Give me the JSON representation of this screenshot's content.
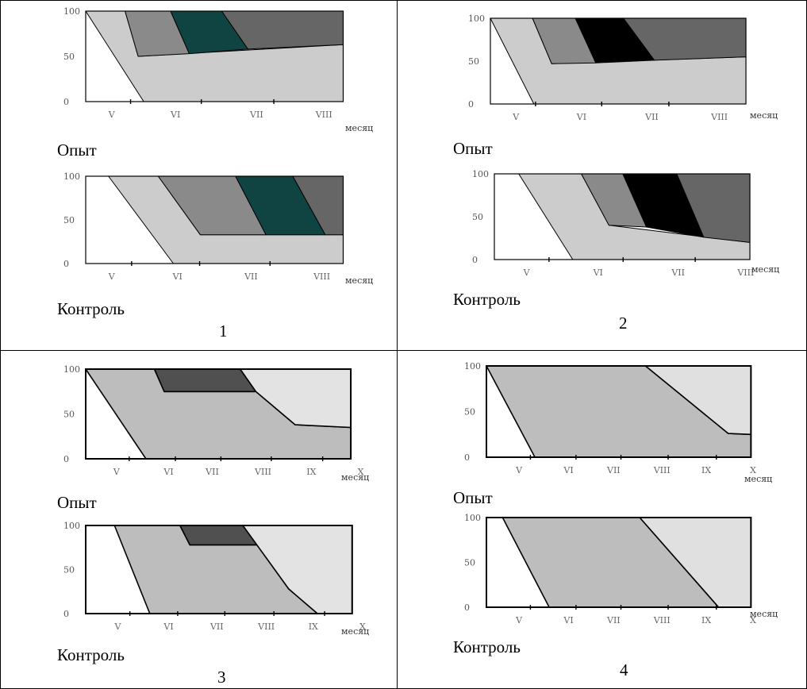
{
  "colors": {
    "background": "#ffffff",
    "grid_border": "#000000",
    "phase_1": "#cccccc",
    "phase_2": "#8a8a8a",
    "phase_3_teal": "#0f4443",
    "phase_3_black": "#000000",
    "phase_3_dark": "#505050",
    "phase_4": "#666666",
    "phase_4_light": "#e0e0e0",
    "phase_plant": "#bdbdbd",
    "phase_late": "#e3e3e3"
  },
  "chart_data": [
    {
      "type": "area",
      "panel": "1",
      "condition": "Опыт",
      "unit_label": "месяц",
      "ylim": [
        0,
        100
      ],
      "y_ticks": [
        "0",
        "50",
        "100"
      ],
      "x_ticks": [
        "V",
        "VI",
        "VII",
        "VIII"
      ],
      "x_domain": [
        0,
        4
      ],
      "month_positions": [
        0.1,
        1.0,
        2.15,
        3.1
      ],
      "series": [
        {
          "fill": "phase_1",
          "polygon": [
            [
              0,
              100
            ],
            [
              0.57,
              100
            ],
            [
              0.76,
              50
            ],
            [
              3.73,
              63
            ],
            [
              3.73,
              0
            ],
            [
              0.84,
              0
            ]
          ]
        },
        {
          "fill": "phase_2",
          "polygon": [
            [
              0.57,
              100
            ],
            [
              1.23,
              100
            ],
            [
              1.5,
              53
            ],
            [
              0.76,
              50
            ]
          ]
        },
        {
          "fill": "phase_3_teal",
          "polygon": [
            [
              1.23,
              100
            ],
            [
              1.97,
              100
            ],
            [
              2.35,
              58
            ],
            [
              1.5,
              53
            ]
          ]
        },
        {
          "fill": "phase_4",
          "polygon": [
            [
              1.97,
              100
            ],
            [
              3.73,
              100
            ],
            [
              3.73,
              63
            ],
            [
              2.35,
              58
            ]
          ]
        }
      ]
    },
    {
      "type": "area",
      "panel": "1",
      "condition": "Контроль",
      "unit_label": "месяц",
      "ylim": [
        0,
        100
      ],
      "y_ticks": [
        "0",
        "50",
        "100"
      ],
      "x_ticks": [
        "V",
        "VI",
        "VII",
        "VIII"
      ],
      "x_domain": [
        0,
        4
      ],
      "month_positions": [
        0.1,
        1.03,
        2.07,
        3.07
      ],
      "series": [
        {
          "fill": "phase_1",
          "polygon": [
            [
              0.33,
              100
            ],
            [
              1.05,
              100
            ],
            [
              1.66,
              33
            ],
            [
              3.73,
              33
            ],
            [
              3.73,
              0
            ],
            [
              1.27,
              0
            ]
          ]
        },
        {
          "fill": "phase_2",
          "polygon": [
            [
              1.05,
              100
            ],
            [
              2.17,
              100
            ],
            [
              2.61,
              33
            ],
            [
              1.66,
              33
            ]
          ]
        },
        {
          "fill": "phase_3_teal",
          "polygon": [
            [
              2.17,
              100
            ],
            [
              3.0,
              100
            ],
            [
              3.47,
              33
            ],
            [
              2.61,
              33
            ]
          ]
        },
        {
          "fill": "phase_4",
          "polygon": [
            [
              3.0,
              100
            ],
            [
              3.73,
              100
            ],
            [
              3.73,
              33
            ],
            [
              3.47,
              33
            ]
          ]
        }
      ]
    },
    {
      "type": "area",
      "panel": "2",
      "condition": "Опыт",
      "unit_label": "месяц",
      "ylim": [
        0,
        100
      ],
      "y_ticks": [
        "0",
        "50",
        "100"
      ],
      "x_ticks": [
        "V",
        "VI",
        "VII",
        "VIII"
      ],
      "x_domain": [
        0,
        4
      ],
      "month_positions": [
        0.1,
        1.07,
        2.11,
        3.11
      ],
      "series": [
        {
          "fill": "phase_1",
          "polygon": [
            [
              0,
              100
            ],
            [
              0.64,
              100
            ],
            [
              0.93,
              47
            ],
            [
              3.88,
              55
            ],
            [
              3.88,
              0
            ],
            [
              0.66,
              0
            ]
          ]
        },
        {
          "fill": "phase_2",
          "polygon": [
            [
              0.64,
              100
            ],
            [
              1.29,
              100
            ],
            [
              1.6,
              48
            ],
            [
              0.93,
              47
            ]
          ]
        },
        {
          "fill": "phase_3_black",
          "polygon": [
            [
              1.29,
              100
            ],
            [
              2.02,
              100
            ],
            [
              2.49,
              51
            ],
            [
              1.6,
              48
            ]
          ]
        },
        {
          "fill": "phase_4",
          "polygon": [
            [
              2.02,
              100
            ],
            [
              3.88,
              100
            ],
            [
              3.88,
              55
            ],
            [
              2.49,
              51
            ]
          ]
        }
      ]
    },
    {
      "type": "area",
      "panel": "2",
      "condition": "Контроль",
      "unit_label": "месяц",
      "ylim": [
        0,
        100
      ],
      "y_ticks": [
        "0",
        "50",
        "100"
      ],
      "x_ticks": [
        "V",
        "VI",
        "VII",
        "VIII"
      ],
      "x_domain": [
        0,
        4
      ],
      "month_positions": [
        0.2,
        1.26,
        2.45,
        3.45
      ],
      "series": [
        {
          "fill": "phase_1",
          "polygon": [
            [
              0.37,
              100
            ],
            [
              1.32,
              100
            ],
            [
              1.74,
              40
            ],
            [
              3.88,
              20
            ],
            [
              3.88,
              0
            ],
            [
              1.19,
              0
            ]
          ]
        },
        {
          "fill": "phase_2",
          "polygon": [
            [
              1.32,
              100
            ],
            [
              1.95,
              100
            ],
            [
              2.31,
              38
            ],
            [
              1.74,
              40
            ]
          ]
        },
        {
          "fill": "phase_3_black",
          "polygon": [
            [
              1.95,
              100
            ],
            [
              2.77,
              100
            ],
            [
              3.18,
              26
            ],
            [
              2.31,
              38
            ]
          ]
        },
        {
          "fill": "phase_4",
          "polygon": [
            [
              2.77,
              100
            ],
            [
              3.88,
              100
            ],
            [
              3.88,
              20
            ],
            [
              3.18,
              26
            ]
          ]
        }
      ]
    },
    {
      "type": "area",
      "panel": "3",
      "condition": "Опыт",
      "unit_label": "месяц",
      "ylim": [
        0,
        100
      ],
      "y_ticks": [
        "0",
        "50",
        "100"
      ],
      "x_ticks": [
        "V",
        "VI",
        "VII",
        "VIII",
        "IX",
        "X"
      ],
      "x_domain": [
        0,
        6
      ],
      "month_positions": [
        0.18,
        0.95,
        1.59,
        2.34,
        3.13,
        3.91
      ],
      "series": [
        {
          "fill": "phase_plant",
          "polygon": [
            [
              0,
              100
            ],
            [
              1.05,
              100
            ],
            [
              1.2,
              75
            ],
            [
              2.6,
              75
            ],
            [
              3.2,
              38
            ],
            [
              4.05,
              35
            ],
            [
              4.05,
              0
            ],
            [
              0.92,
              0
            ]
          ]
        },
        {
          "fill": "phase_3_dark",
          "polygon": [
            [
              1.05,
              100
            ],
            [
              2.36,
              100
            ],
            [
              2.6,
              75
            ],
            [
              1.2,
              75
            ]
          ]
        },
        {
          "fill": "phase_late",
          "polygon": [
            [
              2.36,
              100
            ],
            [
              4.05,
              100
            ],
            [
              4.05,
              35
            ],
            [
              3.2,
              38
            ],
            [
              2.6,
              75
            ]
          ]
        }
      ]
    },
    {
      "type": "area",
      "panel": "3",
      "condition": "Контроль",
      "unit_label": "месяц",
      "ylim": [
        0,
        100
      ],
      "y_ticks": [
        "0",
        "50",
        "100"
      ],
      "x_ticks": [
        "V",
        "VI",
        "VII",
        "VIII",
        "IX",
        "X"
      ],
      "x_domain": [
        0,
        6
      ],
      "month_positions": [
        0.2,
        0.95,
        1.66,
        2.39,
        3.16,
        3.94
      ],
      "series": [
        {
          "fill": "phase_plant",
          "polygon": [
            [
              0.44,
              100
            ],
            [
              1.44,
              100
            ],
            [
              1.59,
              78
            ],
            [
              2.62,
              78
            ],
            [
              3.1,
              28
            ],
            [
              3.54,
              0
            ],
            [
              0.98,
              0
            ]
          ]
        },
        {
          "fill": "phase_3_dark",
          "polygon": [
            [
              1.44,
              100
            ],
            [
              2.4,
              100
            ],
            [
              2.62,
              78
            ],
            [
              1.59,
              78
            ]
          ]
        },
        {
          "fill": "phase_late",
          "polygon": [
            [
              2.4,
              100
            ],
            [
              4.07,
              100
            ],
            [
              4.07,
              0
            ],
            [
              3.54,
              0
            ],
            [
              3.1,
              28
            ]
          ]
        }
      ]
    },
    {
      "type": "area",
      "panel": "4",
      "condition": "Опыт",
      "unit_label": "месяц",
      "ylim": [
        0,
        100
      ],
      "y_ticks": [
        "0",
        "50",
        "100"
      ],
      "x_ticks": [
        "V",
        "VI",
        "VII",
        "VIII",
        "IX",
        "X"
      ],
      "x_domain": [
        0,
        6
      ],
      "month_positions": [
        0.21,
        0.95,
        1.62,
        2.34,
        3.08,
        3.83
      ],
      "series": [
        {
          "fill": "phase_plant",
          "polygon": [
            [
              0,
              100
            ],
            [
              2.46,
              100
            ],
            [
              3.74,
              26
            ],
            [
              4.09,
              25
            ],
            [
              4.09,
              0
            ],
            [
              0.75,
              0
            ]
          ]
        },
        {
          "fill": "phase_4_light",
          "polygon": [
            [
              2.46,
              100
            ],
            [
              4.09,
              100
            ],
            [
              4.09,
              25
            ],
            [
              3.74,
              26
            ]
          ]
        }
      ]
    },
    {
      "type": "area",
      "panel": "4",
      "condition": "Контроль",
      "unit_label": "месяц",
      "ylim": [
        0,
        100
      ],
      "y_ticks": [
        "0",
        "50",
        "100"
      ],
      "x_ticks": [
        "V",
        "VI",
        "VII",
        "VIII",
        "IX",
        "X"
      ],
      "x_domain": [
        0,
        6
      ],
      "month_positions": [
        0.21,
        0.95,
        1.62,
        2.34,
        3.08,
        3.83
      ],
      "series": [
        {
          "fill": "phase_plant",
          "polygon": [
            [
              0.25,
              100
            ],
            [
              2.37,
              100
            ],
            [
              3.59,
              0
            ],
            [
              0.97,
              0
            ]
          ]
        },
        {
          "fill": "phase_4_light",
          "polygon": [
            [
              2.37,
              100
            ],
            [
              4.09,
              100
            ],
            [
              4.09,
              0
            ],
            [
              3.59,
              0
            ]
          ]
        }
      ]
    }
  ],
  "panels": [
    {
      "number": "1",
      "conditions": [
        "Опыт",
        "Контроль"
      ]
    },
    {
      "number": "2",
      "conditions": [
        "Опыт",
        "Контроль"
      ]
    },
    {
      "number": "3",
      "conditions": [
        "Опыт",
        "Контроль"
      ]
    },
    {
      "number": "4",
      "conditions": [
        "Опыт",
        "Контроль"
      ]
    }
  ]
}
